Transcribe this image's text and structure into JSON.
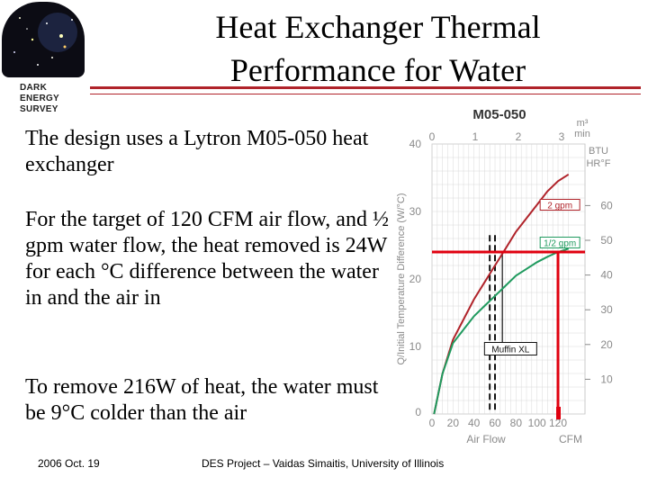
{
  "slide": {
    "title_line1": "Heat Exchanger Thermal",
    "title_line2": "Performance for Water",
    "paragraphs": [
      "The design uses a Lytron M05-050 heat exchanger",
      "For the target of 120 CFM air flow, and ½ gpm water flow, the heat removed is 24W for each °C difference between the water in and the air in",
      "To remove 216W of heat, the water must be 9°C colder than the air"
    ],
    "footer_date": "2006 Oct. 19",
    "footer_credit": "DES Project – Vaidas Simaitis, University of Illinois"
  },
  "logo": {
    "line1": "DARK ENERGY",
    "line2": "SURVEY"
  },
  "colors": {
    "accent_red": "#b0232a",
    "curve_2gpm": "#b0232a",
    "curve_half_gpm": "#1f9a5e",
    "highlight": "#e0000f"
  },
  "chart_data": {
    "type": "line",
    "title": "M05-050",
    "xlabel": "Air Flow",
    "x_unit": "CFM",
    "ylabel": "Q/Initial Temperature Difference (W/°C)",
    "x_top_unit_top": "m³",
    "x_top_unit_bottom": "min",
    "y_right_unit_top": "BTU",
    "y_right_unit_bottom": "HR°F",
    "xlim": [
      0,
      120
    ],
    "ylim": [
      0,
      40
    ],
    "x_ticks": [
      0,
      20,
      40,
      60,
      80,
      100,
      120
    ],
    "x_tick_labels": [
      "0",
      "20",
      "40",
      "60",
      "80",
      "100",
      "120"
    ],
    "y_ticks": [
      10,
      20,
      30,
      40
    ],
    "y_tick_labels": [
      "10",
      "20",
      "30",
      "40"
    ],
    "y_zero_label": "0",
    "x_top_ticks": [
      0,
      1,
      2,
      3
    ],
    "y_right_ticks": [
      10,
      20,
      30,
      40,
      50,
      60
    ],
    "grid": true,
    "series": [
      {
        "name": "2 gpm",
        "x": [
          2,
          10,
          20,
          30,
          40,
          50,
          60,
          70,
          80,
          90,
          100,
          110,
          120,
          130
        ],
        "y": [
          0,
          6,
          11,
          14,
          17,
          19.5,
          22,
          24.5,
          27,
          29,
          31,
          33,
          34.5,
          35.5
        ]
      },
      {
        "name": "1/2 gpm",
        "x": [
          2,
          10,
          20,
          30,
          40,
          50,
          60,
          70,
          80,
          90,
          100,
          110,
          120,
          130
        ],
        "y": [
          0,
          6,
          10.5,
          12.5,
          14.5,
          16,
          17.5,
          19,
          20.5,
          21.5,
          22.5,
          23.3,
          24,
          24.5
        ]
      }
    ],
    "annotations": [
      {
        "text": "Muffin XL",
        "x": 67,
        "y": 10
      }
    ],
    "highlight": {
      "x": 120,
      "y": 24
    },
    "dashed_lines_x": [
      55,
      60
    ]
  }
}
